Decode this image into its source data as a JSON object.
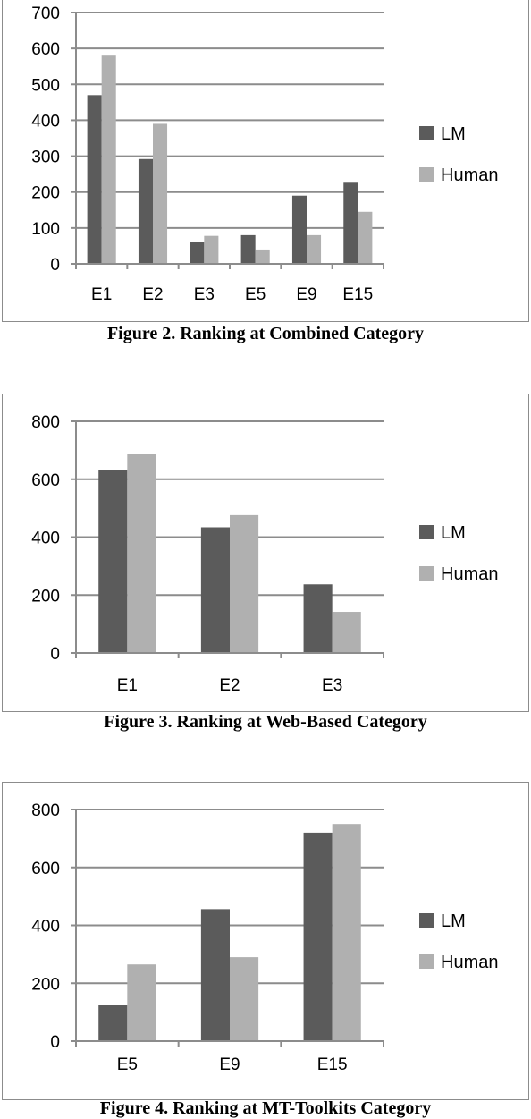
{
  "colors": {
    "LM": "#5b5b5b",
    "Human": "#b0b0b0",
    "grid": "#8c8c8c",
    "axis": "#8c8c8c"
  },
  "chart_data": [
    {
      "type": "bar",
      "title": "",
      "caption": "Figure 2. Ranking at Combined Category",
      "xlabel": "",
      "ylabel": "",
      "categories": [
        "E1",
        "E2",
        "E3",
        "E5",
        "E9",
        "E15"
      ],
      "series": [
        {
          "name": "LM",
          "values": [
            470,
            292,
            60,
            80,
            190,
            226
          ]
        },
        {
          "name": "Human",
          "values": [
            580,
            390,
            78,
            40,
            80,
            145
          ]
        }
      ],
      "ylim": [
        0,
        700
      ],
      "yticks": [
        0,
        100,
        200,
        300,
        400,
        500,
        600,
        700
      ],
      "grid": true,
      "legend_position": "right"
    },
    {
      "type": "bar",
      "title": "",
      "caption": "Figure 3. Ranking at Web-Based Category",
      "xlabel": "",
      "ylabel": "",
      "categories": [
        "E1",
        "E2",
        "E3"
      ],
      "series": [
        {
          "name": "LM",
          "values": [
            632,
            434,
            237
          ]
        },
        {
          "name": "Human",
          "values": [
            687,
            476,
            142
          ]
        }
      ],
      "ylim": [
        0,
        800
      ],
      "yticks": [
        0,
        200,
        400,
        600,
        800
      ],
      "grid": true,
      "legend_position": "right"
    },
    {
      "type": "bar",
      "title": "",
      "caption": "Figure 4. Ranking at MT-Toolkits Category",
      "xlabel": "",
      "ylabel": "",
      "categories": [
        "E5",
        "E9",
        "E15"
      ],
      "series": [
        {
          "name": "LM",
          "values": [
            125,
            456,
            720
          ]
        },
        {
          "name": "Human",
          "values": [
            265,
            290,
            750
          ]
        }
      ],
      "ylim": [
        0,
        800
      ],
      "yticks": [
        0,
        200,
        400,
        600,
        800
      ],
      "grid": true,
      "legend_position": "right"
    }
  ]
}
